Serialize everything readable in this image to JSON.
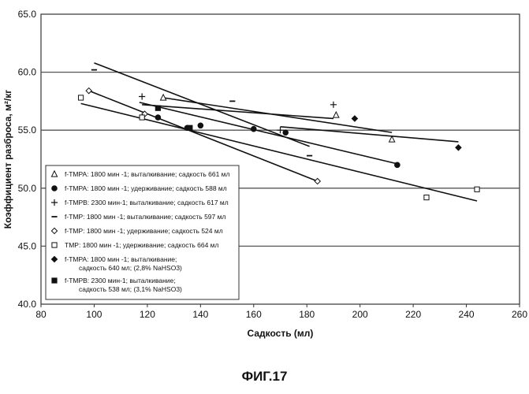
{
  "figure_label": "ФИГ.17",
  "chart_data": {
    "type": "scatter",
    "xlabel": "Садкость (мл)",
    "ylabel": "Коэффициент разброса, м²/кг",
    "xlim": [
      80,
      260
    ],
    "ylim": [
      40.0,
      65.0
    ],
    "x_ticks": [
      "80",
      "100",
      "120",
      "140",
      "160",
      "180",
      "200",
      "220",
      "240",
      "260"
    ],
    "y_ticks": [
      "40.0",
      "45.0",
      "50.0",
      "55.0",
      "60.0",
      "65.0"
    ],
    "grid": "horizontal",
    "legend_position": "bottom-left",
    "series": [
      {
        "name": "f-TMPA: 1800 мин -1; выталкивание; садкость 661 мл",
        "marker": "triangle-open",
        "points": [
          [
            126,
            57.8
          ],
          [
            191,
            56.3
          ],
          [
            212,
            54.2
          ]
        ],
        "trend": [
          [
            126,
            57.8
          ],
          [
            212,
            54.8
          ]
        ]
      },
      {
        "name": "f-TMPA: 1800 мин -1; удерживание; садкость 588 мл",
        "marker": "circle-filled",
        "points": [
          [
            124,
            56.1
          ],
          [
            135,
            55.2
          ],
          [
            140,
            55.4
          ],
          [
            160,
            55.1
          ],
          [
            172,
            54.8
          ],
          [
            214,
            52.0
          ]
        ],
        "trend": [
          [
            117,
            57.4
          ],
          [
            214,
            52.1
          ]
        ]
      },
      {
        "name": "f-TMPB: 2300 мин-1; выталкивание; садкость 617 мл",
        "marker": "plus",
        "points": [
          [
            118,
            57.9
          ],
          [
            170,
            55.0
          ],
          [
            190,
            57.2
          ]
        ],
        "trend": [
          [
            118,
            57.2
          ],
          [
            190,
            56.0
          ]
        ]
      },
      {
        "name": "f-TMP: 1800 мин -1; выталкивание; садкость 597 мл",
        "marker": "dash",
        "points": [
          [
            100,
            60.2
          ],
          [
            152,
            57.5
          ],
          [
            181,
            52.8
          ]
        ],
        "trend": [
          [
            100,
            60.8
          ],
          [
            181,
            53.6
          ]
        ]
      },
      {
        "name": "f-TMP: 1800 мин -1; удерживание; садкость 524 мл",
        "marker": "diamond-open",
        "points": [
          [
            98,
            58.4
          ],
          [
            119,
            56.4
          ],
          [
            184,
            50.6
          ]
        ],
        "trend": [
          [
            98,
            58.4
          ],
          [
            184,
            50.6
          ]
        ]
      },
      {
        "name": "TMP: 1800 мин -1; удерживание; садкость 664 мл",
        "marker": "square-open",
        "points": [
          [
            95,
            57.8
          ],
          [
            118,
            56.1
          ],
          [
            225,
            49.2
          ],
          [
            244,
            49.9
          ]
        ],
        "trend": [
          [
            95,
            57.3
          ],
          [
            244,
            48.9
          ]
        ]
      },
      {
        "name": "f-TMPA: 1800 мин -1; выталкивание;\nсадкость 640 мл; (2,8% NaHSO3)",
        "marker": "diamond-filled",
        "points": [
          [
            198,
            56.0
          ],
          [
            237,
            53.5
          ]
        ],
        "trend": [
          [
            170,
            55.3
          ],
          [
            237,
            54.0
          ]
        ]
      },
      {
        "name": "f-TMPB: 2300 мин-1; выталкивание;\nсадкость 538 мл; (3,1% NaHSO3)",
        "marker": "square-filled",
        "points": [
          [
            124,
            56.9
          ],
          [
            136,
            55.2
          ]
        ],
        "trend": []
      }
    ]
  }
}
